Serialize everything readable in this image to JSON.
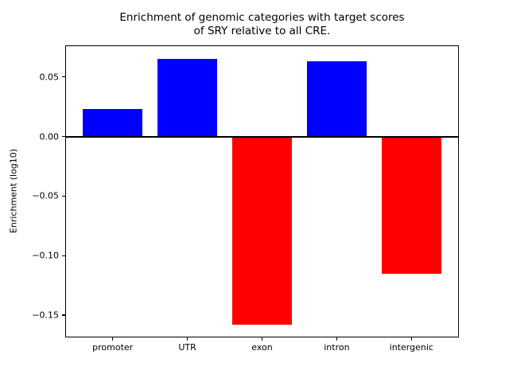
{
  "chart_data": {
    "type": "bar",
    "title": "Enrichment of genomic categories with target scores\nof SRY relative to all CRE.",
    "title_lines": [
      "Enrichment of genomic categories with target scores",
      "of SRY relative to all CRE."
    ],
    "categories": [
      "promoter",
      "UTR",
      "exon",
      "intron",
      "intergenic"
    ],
    "values": [
      0.023,
      0.065,
      -0.158,
      0.063,
      -0.115
    ],
    "bar_colors": [
      "#0000ff",
      "#0000ff",
      "#ff0000",
      "#0000ff",
      "#ff0000"
    ],
    "positive_color": "#0000ff",
    "negative_color": "#ff0000",
    "xlabel": "",
    "ylabel": "Enrichment (log10)",
    "ylim": [
      -0.168,
      0.076
    ],
    "xlim": [
      -0.625,
      4.625
    ],
    "bar_width": 0.8,
    "yticks": [
      {
        "value": 0.05,
        "label": "0.05"
      },
      {
        "value": 0.0,
        "label": "0.00"
      },
      {
        "value": -0.05,
        "label": "−0.05"
      },
      {
        "value": -0.1,
        "label": "−0.10"
      },
      {
        "value": -0.15,
        "label": "−0.15"
      }
    ],
    "zero_line": {
      "value": 0,
      "color": "#000000",
      "width": 2
    },
    "grid": false,
    "legend": null,
    "frame_color": "#000000",
    "background": "#ffffff"
  }
}
